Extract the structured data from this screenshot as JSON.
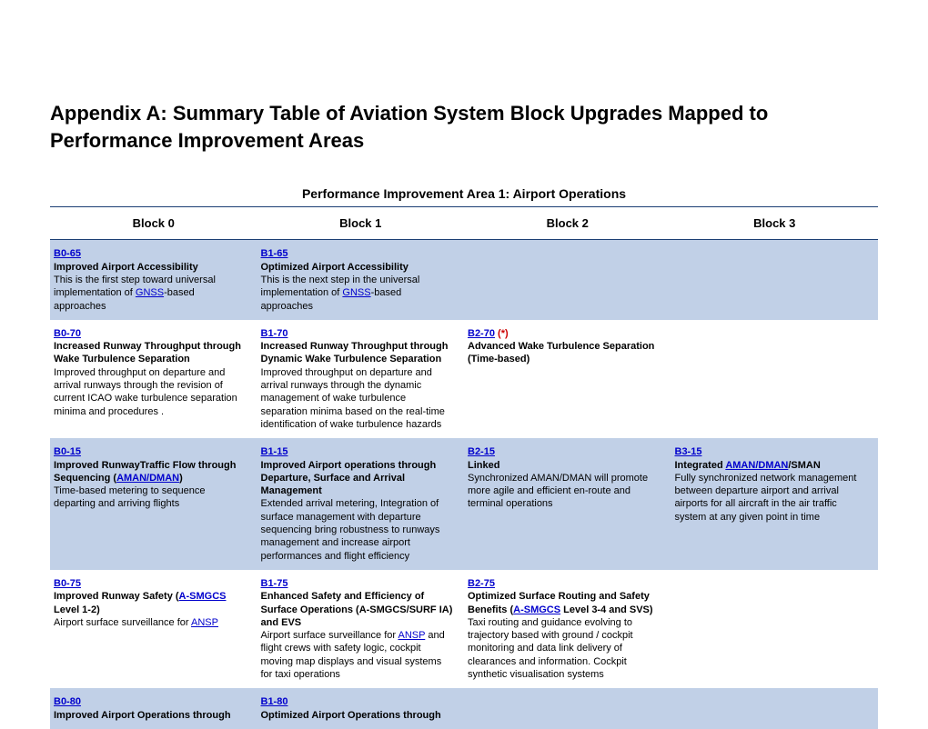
{
  "colors": {
    "page_bg": "#ffffff",
    "text": "#000000",
    "link": "#0000cc",
    "accent_border": "#1b3e74",
    "row_shade": "#c1d0e7",
    "red": "#cc0000"
  },
  "typography": {
    "main_title_fontsize": 22,
    "subtitle_fontsize": 14,
    "header_fontsize": 13,
    "body_fontsize": 11
  },
  "main_title": "Appendix A:  Summary Table of Aviation System Block Upgrades Mapped to Performance Improvement Areas",
  "subtitle": "Performance Improvement Area 1: Airport Operations",
  "table": {
    "type": "table",
    "columns": [
      "Block 0",
      "Block 1",
      "Block 2",
      "Block 3"
    ],
    "column_widths_pct": [
      25,
      25,
      25,
      25
    ],
    "rows": [
      {
        "shade": true,
        "cells": [
          {
            "code": "B0-65",
            "title": "Improved Airport Accessibility",
            "desc_pre": "This is the first step toward universal implementation of ",
            "desc_link": "GNSS",
            "desc_post": "-based approaches"
          },
          {
            "code": "B1-65",
            "title": "Optimized Airport Accessibility",
            "desc_pre": "This is the next step in the universal implementation of ",
            "desc_link": "GNSS",
            "desc_post": "-based approaches"
          },
          {
            "empty": true
          },
          {
            "empty": true
          }
        ]
      },
      {
        "shade": false,
        "cells": [
          {
            "code": "B0-70",
            "title": "Increased Runway Throughput through Wake Turbulence Separation",
            "desc_pre": "Improved throughput on departure and arrival runways through the revision of current ICAO wake turbulence separation minima and procedures .",
            "desc_link": "",
            "desc_post": ""
          },
          {
            "code": "B1-70",
            "title": "Increased Runway Throughput through Dynamic Wake Turbulence Separation",
            "desc_pre": "Improved throughput on departure and arrival runways through the dynamic management of wake turbulence separation minima based on the real-time identification of wake turbulence hazards",
            "desc_link": "",
            "desc_post": ""
          },
          {
            "code": "B2-70",
            "code_suffix": " (*)",
            "title": "Advanced Wake Turbulence Separation (Time-based)",
            "desc_pre": "",
            "desc_link": "",
            "desc_post": ""
          },
          {
            "empty": true
          }
        ]
      },
      {
        "shade": true,
        "cells": [
          {
            "code": "B0-15",
            "title_pre": " Improved RunwayTraffic Flow through Sequencing (",
            "title_link": "AMAN/DMAN",
            "title_post": ")",
            "desc_pre": "Time-based metering to sequence departing and arriving flights",
            "desc_link": "",
            "desc_post": ""
          },
          {
            "code": "B1-15",
            "title": "Improved Airport operations through Departure, Surface  and Arrival  Management",
            "desc_pre": "Extended arrival metering, Integration of surface management with departure sequencing bring robustness to runways management and  increase airport performances and flight efficiency",
            "desc_link": "",
            "desc_post": ""
          },
          {
            "code": "B2-15",
            "title": "Linked",
            "desc_pre": "Synchronized AMAN/DMAN will promote more agile and efficient en-route and terminal operations",
            "desc_link": "",
            "desc_post": ""
          },
          {
            "code": "B3-15",
            "title_pre": "Integrated ",
            "title_link": "AMAN/DMAN",
            "title_post": "/SMAN",
            "desc_pre": "Fully synchronized network management between departure airport and arrival airports for all aircraft in the air traffic system at any given point in time",
            "desc_link": "",
            "desc_post": ""
          }
        ]
      },
      {
        "shade": false,
        "cells": [
          {
            "code": "B0-75",
            "title_pre": "Improved Runway Safety (",
            "title_link": "A-SMGCS",
            "title_post": " Level 1-2)",
            "desc_pre": "Airport surface surveillance for ",
            "desc_link": "ANSP",
            "desc_post": ""
          },
          {
            "code": "B1-75",
            "title": "Enhanced Safety and Efficiency of Surface Operations (A-SMGCS/SURF IA) and EVS",
            "desc_pre": "Airport surface surveillance for ",
            "desc_link": "ANSP",
            "desc_post": " and flight crews with safety logic, cockpit moving map displays and visual systems for taxi operations"
          },
          {
            "code": "B2-75",
            "title_pre": "Optimized Surface Routing and Safety Benefits  (",
            "title_link": "A-SMGCS",
            "title_post": " Level 3-4 and SVS)",
            "desc_pre": "Taxi routing and guidance evolving to trajectory based with ground / cockpit monitoring and data link delivery of clearances and information.  Cockpit synthetic visualisation systems",
            "desc_link": "",
            "desc_post": ""
          },
          {
            "empty": true
          }
        ]
      },
      {
        "shade": true,
        "cells": [
          {
            "code": "B0-80",
            "title": "Improved Airport Operations through",
            "desc_pre": "",
            "desc_link": "",
            "desc_post": ""
          },
          {
            "code": "B1-80",
            "title": "Optimized Airport Operations through",
            "desc_pre": "",
            "desc_link": "",
            "desc_post": ""
          },
          {
            "empty": true
          },
          {
            "empty": true
          }
        ]
      }
    ]
  }
}
